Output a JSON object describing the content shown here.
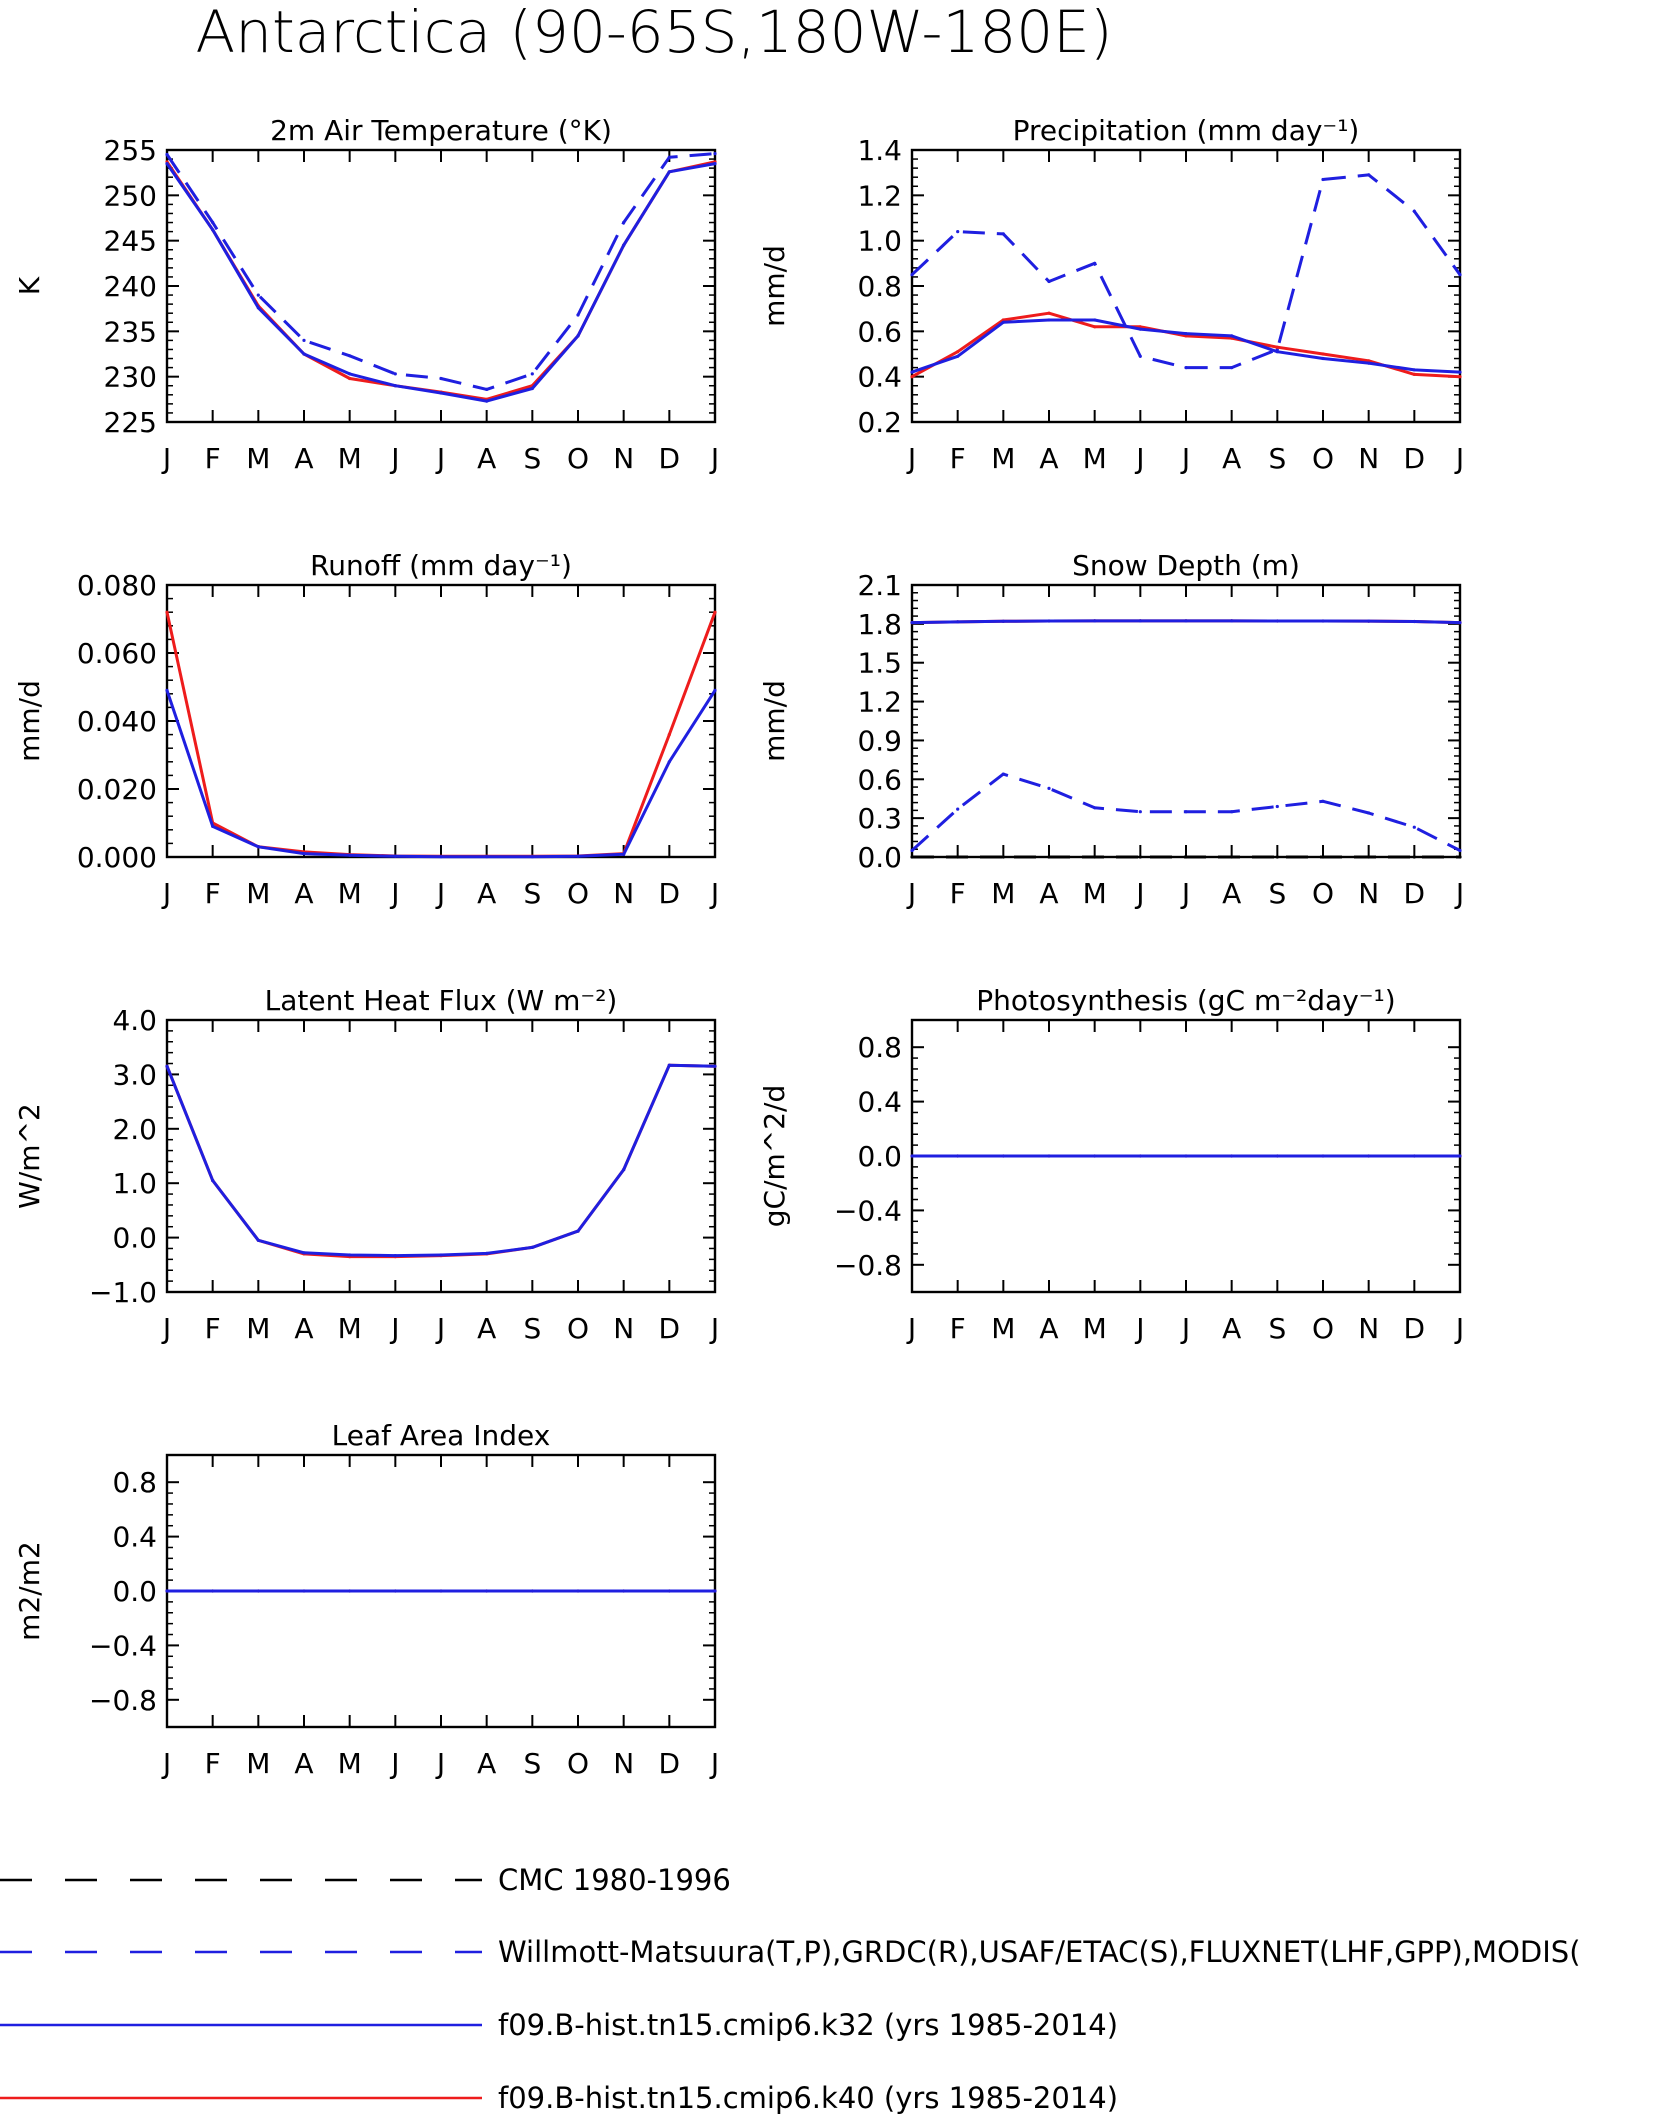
{
  "page_title": "Antarctica (90-65S,180W-180E)",
  "months": [
    "J",
    "F",
    "M",
    "A",
    "M",
    "J",
    "J",
    "A",
    "S",
    "O",
    "N",
    "D",
    "J"
  ],
  "colors": {
    "cmc": "#000000",
    "obs": "#1f1fe0",
    "k32": "#1f1fe0",
    "k40": "#ee1c1c"
  },
  "legend": [
    {
      "key": "cmc",
      "label": "CMC 1980-1996",
      "dash": true
    },
    {
      "key": "obs",
      "label": "Willmott-Matsuura(T,P),GRDC(R),USAF/ETAC(S),FLUXNET(LHF,GPP),MODIS(",
      "dash": true
    },
    {
      "key": "k32",
      "label": "f09.B-hist.tn15.cmip6.k32 (yrs 1985-2014)",
      "dash": false
    },
    {
      "key": "k40",
      "label": "f09.B-hist.tn15.cmip6.k40 (yrs 1985-2014)",
      "dash": false
    }
  ],
  "chart_data": [
    {
      "type": "line",
      "title": "2m Air Temperature (°K)",
      "ylabel": "K",
      "ylim": [
        225,
        255
      ],
      "yticks": [
        225,
        230,
        235,
        240,
        245,
        250,
        255
      ],
      "ytick_labels": [
        "225",
        "230",
        "235",
        "240",
        "245",
        "250",
        "255"
      ],
      "series": [
        {
          "key": "obs",
          "dash": true,
          "values": [
            254.5,
            247.0,
            239.0,
            234.0,
            232.3,
            230.3,
            229.8,
            228.6,
            230.3,
            236.8,
            247.0,
            254.2,
            254.6
          ]
        },
        {
          "key": "k40",
          "dash": false,
          "values": [
            253.7,
            246.2,
            237.8,
            232.5,
            229.8,
            229.0,
            228.3,
            227.5,
            229.0,
            234.5,
            244.5,
            252.6,
            253.7
          ]
        },
        {
          "key": "k32",
          "dash": false,
          "values": [
            253.5,
            246.2,
            237.6,
            232.5,
            230.3,
            229.0,
            228.2,
            227.3,
            228.7,
            234.5,
            244.5,
            252.6,
            253.5
          ]
        }
      ]
    },
    {
      "type": "line",
      "title": "Precipitation (mm day⁻¹)",
      "ylabel": "mm/d",
      "ylim": [
        0.2,
        1.4
      ],
      "yticks": [
        0.2,
        0.4,
        0.6,
        0.8,
        1.0,
        1.2,
        1.4
      ],
      "ytick_labels": [
        "0.2",
        "0.4",
        "0.6",
        "0.8",
        "1.0",
        "1.2",
        "1.4"
      ],
      "series": [
        {
          "key": "obs",
          "dash": true,
          "values": [
            0.85,
            1.04,
            1.03,
            0.82,
            0.9,
            0.49,
            0.44,
            0.44,
            0.52,
            1.27,
            1.29,
            1.13,
            0.85
          ]
        },
        {
          "key": "k40",
          "dash": false,
          "values": [
            0.4,
            0.51,
            0.65,
            0.68,
            0.62,
            0.62,
            0.58,
            0.57,
            0.53,
            0.5,
            0.47,
            0.41,
            0.4
          ]
        },
        {
          "key": "k32",
          "dash": false,
          "values": [
            0.42,
            0.49,
            0.64,
            0.65,
            0.65,
            0.61,
            0.59,
            0.58,
            0.51,
            0.48,
            0.46,
            0.43,
            0.42
          ]
        }
      ]
    },
    {
      "type": "line",
      "title": "Runoff (mm day⁻¹)",
      "ylabel": "mm/d",
      "ylim": [
        0,
        0.08
      ],
      "yticks": [
        0,
        0.02,
        0.04,
        0.06,
        0.08
      ],
      "ytick_labels": [
        "0.000",
        "0.020",
        "0.040",
        "0.060",
        "0.080"
      ],
      "series": [
        {
          "key": "k40",
          "dash": false,
          "values": [
            0.072,
            0.01,
            0.003,
            0.0015,
            0.0007,
            0.0003,
            0.0002,
            0.0002,
            0.0002,
            0.0003,
            0.001,
            0.036,
            0.072
          ]
        },
        {
          "key": "k32",
          "dash": false,
          "values": [
            0.049,
            0.009,
            0.003,
            0.001,
            0.0005,
            0.0002,
            0.0001,
            0.0001,
            0.0001,
            0.0002,
            0.0008,
            0.028,
            0.049
          ]
        }
      ]
    },
    {
      "type": "line",
      "title": "Snow Depth (m)",
      "ylabel": "mm/d",
      "ylim": [
        0,
        2.1
      ],
      "yticks": [
        0,
        0.3,
        0.6,
        0.9,
        1.2,
        1.5,
        1.8,
        2.1
      ],
      "ytick_labels": [
        "0.0",
        "0.3",
        "0.6",
        "0.9",
        "1.2",
        "1.5",
        "1.8",
        "2.1"
      ],
      "series": [
        {
          "key": "cmc",
          "dash": true,
          "values": [
            0.0,
            0.0,
            0.0,
            0.0,
            0.0,
            0.0,
            0.0,
            0.0,
            0.0,
            0.0,
            0.0,
            0.0,
            0.0
          ]
        },
        {
          "key": "obs",
          "dash": true,
          "values": [
            0.05,
            0.37,
            0.64,
            0.53,
            0.38,
            0.35,
            0.35,
            0.35,
            0.39,
            0.43,
            0.34,
            0.23,
            0.05
          ]
        },
        {
          "key": "k40",
          "dash": false,
          "values": [
            1.81,
            1.815,
            1.82,
            1.822,
            1.823,
            1.823,
            1.823,
            1.823,
            1.822,
            1.822,
            1.821,
            1.818,
            1.81
          ]
        },
        {
          "key": "k32",
          "dash": false,
          "values": [
            1.81,
            1.815,
            1.82,
            1.822,
            1.823,
            1.823,
            1.823,
            1.823,
            1.822,
            1.822,
            1.821,
            1.818,
            1.81
          ]
        }
      ]
    },
    {
      "type": "line",
      "title": "Latent Heat Flux (W m⁻²)",
      "ylabel": "W/m^2",
      "ylim": [
        -1,
        4
      ],
      "yticks": [
        -1,
        0,
        1,
        2,
        3,
        4
      ],
      "ytick_labels": [
        "−1.0",
        "0.0",
        "1.0",
        "2.0",
        "3.0",
        "4.0"
      ],
      "series": [
        {
          "key": "k40",
          "dash": false,
          "values": [
            3.15,
            1.05,
            -0.05,
            -0.3,
            -0.35,
            -0.35,
            -0.33,
            -0.3,
            -0.18,
            0.12,
            1.25,
            3.17,
            3.15
          ]
        },
        {
          "key": "k32",
          "dash": false,
          "values": [
            3.15,
            1.05,
            -0.05,
            -0.28,
            -0.32,
            -0.33,
            -0.32,
            -0.29,
            -0.18,
            0.12,
            1.25,
            3.17,
            3.15
          ]
        }
      ]
    },
    {
      "type": "line",
      "title": "Photosynthesis (gC m⁻²day⁻¹)",
      "ylabel": "gC/m^2/d",
      "ylim": [
        -1,
        1
      ],
      "yticks": [
        -0.8,
        -0.4,
        0,
        0.4,
        0.8
      ],
      "ytick_labels": [
        "−0.8",
        "−0.4",
        "0.0",
        "0.4",
        "0.8"
      ],
      "series": [
        {
          "key": "k40",
          "dash": false,
          "values": [
            0,
            0,
            0,
            0,
            0,
            0,
            0,
            0,
            0,
            0,
            0,
            0,
            0
          ]
        },
        {
          "key": "k32",
          "dash": false,
          "values": [
            0,
            0,
            0,
            0,
            0,
            0,
            0,
            0,
            0,
            0,
            0,
            0,
            0
          ]
        }
      ]
    },
    {
      "type": "line",
      "title": "Leaf Area Index",
      "ylabel": "m2/m2",
      "ylim": [
        -1,
        1
      ],
      "yticks": [
        -0.8,
        -0.4,
        0,
        0.4,
        0.8
      ],
      "ytick_labels": [
        "−0.8",
        "−0.4",
        "0.0",
        "0.4",
        "0.8"
      ],
      "series": [
        {
          "key": "k40",
          "dash": false,
          "values": [
            0,
            0,
            0,
            0,
            0,
            0,
            0,
            0,
            0,
            0,
            0,
            0,
            0
          ]
        },
        {
          "key": "k32",
          "dash": false,
          "values": [
            0,
            0,
            0,
            0,
            0,
            0,
            0,
            0,
            0,
            0,
            0,
            0,
            0
          ]
        }
      ]
    }
  ]
}
